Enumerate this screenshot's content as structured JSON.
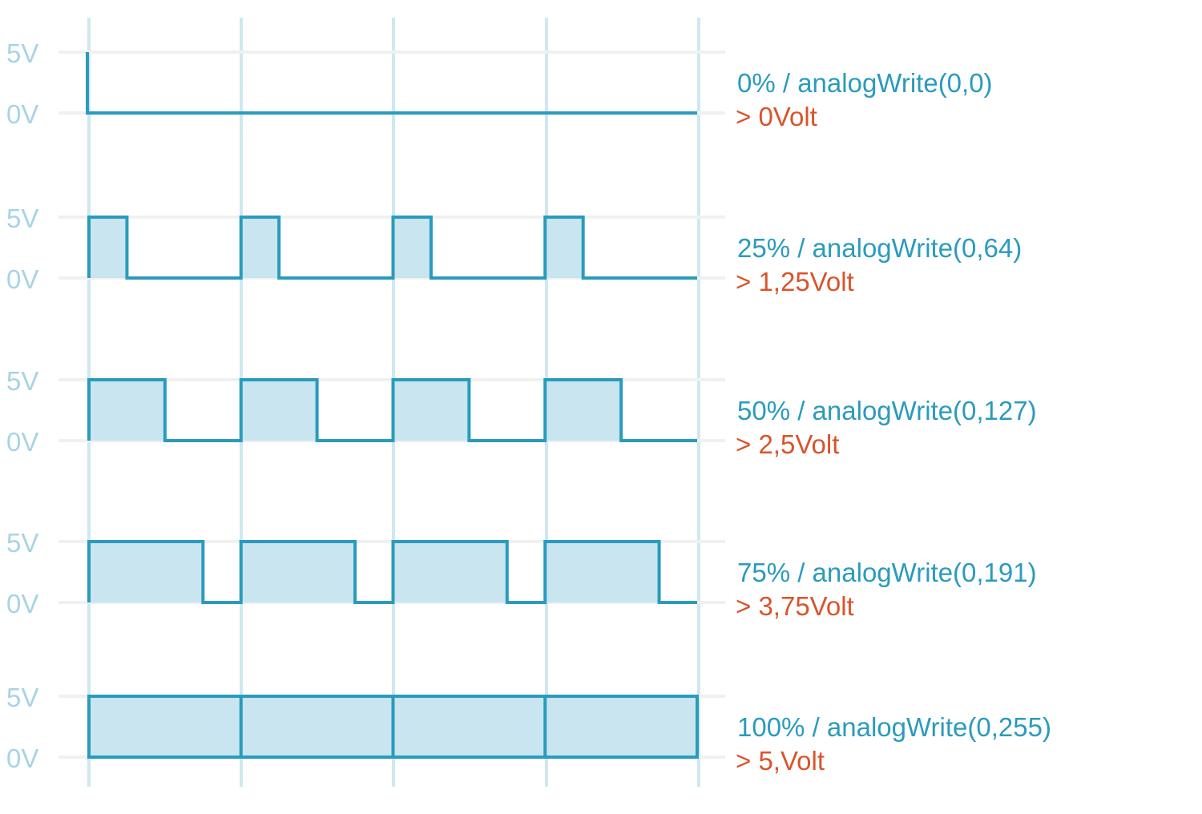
{
  "colors": {
    "signal": "#2a9bbd",
    "fill": "#c8e5f0",
    "gridline": "#f0f0f0",
    "period_line": "#cfe8f0",
    "axis_label": "#a8d4e4",
    "caption_main": "#2a9bbd",
    "caption_volt": "#d9542b"
  },
  "levels": {
    "high_label": "5V",
    "low_label": "0V"
  },
  "periods": 4,
  "signals": [
    {
      "duty": 0,
      "caption": "0% / analogWrite(0,0)",
      "voltage": "> 0Volt"
    },
    {
      "duty": 0.25,
      "caption": "25% / analogWrite(0,64)",
      "voltage": "> 1,25Volt"
    },
    {
      "duty": 0.5,
      "caption": "50% / analogWrite(0,127)",
      "voltage": "> 2,5Volt"
    },
    {
      "duty": 0.75,
      "caption": "75% / analogWrite(0,191)",
      "voltage": "> 3,75Volt"
    },
    {
      "duty": 1,
      "caption": "100% / analogWrite(0,255)",
      "voltage": "> 5,Volt"
    }
  ]
}
